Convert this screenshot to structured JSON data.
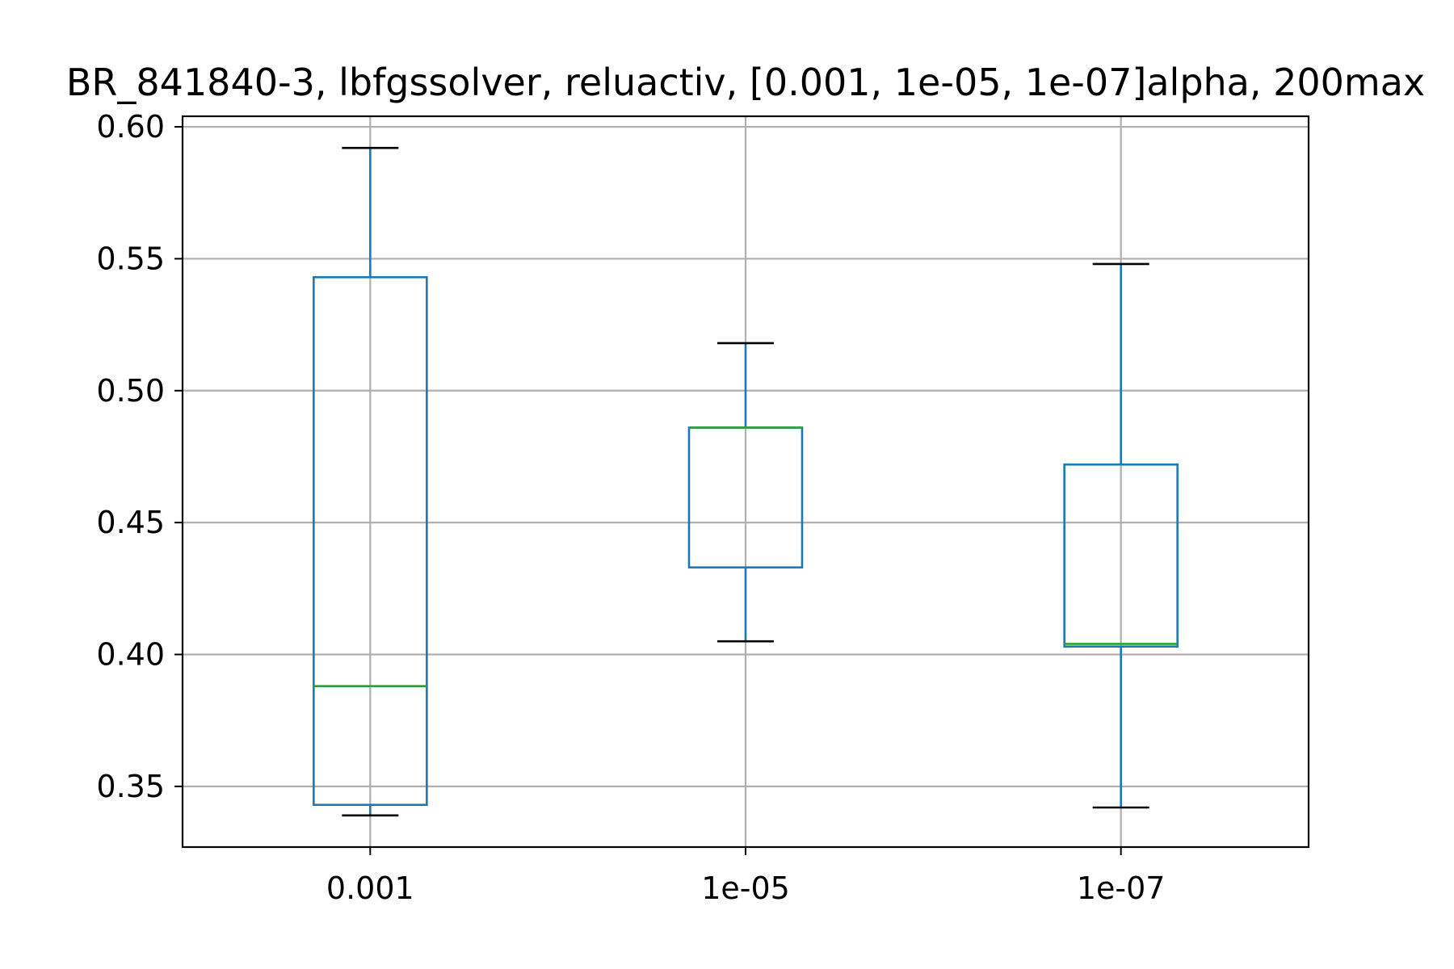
{
  "chart_data": {
    "type": "box",
    "title": "BR_841840-3, lbfgssolver, reluactiv, [0.001, 1e-05, 1e-07]alpha, 200max",
    "xlabel": "",
    "ylabel": "",
    "categories": [
      "0.001",
      "1e-05",
      "1e-07"
    ],
    "ylim": [
      0.327,
      0.604
    ],
    "yticks": [
      0.35,
      0.4,
      0.45,
      0.5,
      0.55,
      0.6
    ],
    "ytick_labels": [
      "0.35",
      "0.40",
      "0.45",
      "0.50",
      "0.55",
      "0.60"
    ],
    "grid": true,
    "boxes": [
      {
        "category": "0.001",
        "whisker_low": 0.339,
        "q1": 0.343,
        "median": 0.388,
        "q3": 0.543,
        "whisker_high": 0.592
      },
      {
        "category": "1e-05",
        "whisker_low": 0.405,
        "q1": 0.433,
        "median": 0.486,
        "q3": 0.486,
        "whisker_high": 0.518
      },
      {
        "category": "1e-07",
        "whisker_low": 0.342,
        "q1": 0.403,
        "median": 0.404,
        "q3": 0.472,
        "whisker_high": 0.548
      }
    ],
    "colors": {
      "box": "#1f77b4",
      "median": "#2ca02c",
      "cap": "#000000",
      "grid": "#b0b0b0",
      "axes": "#000000"
    }
  }
}
